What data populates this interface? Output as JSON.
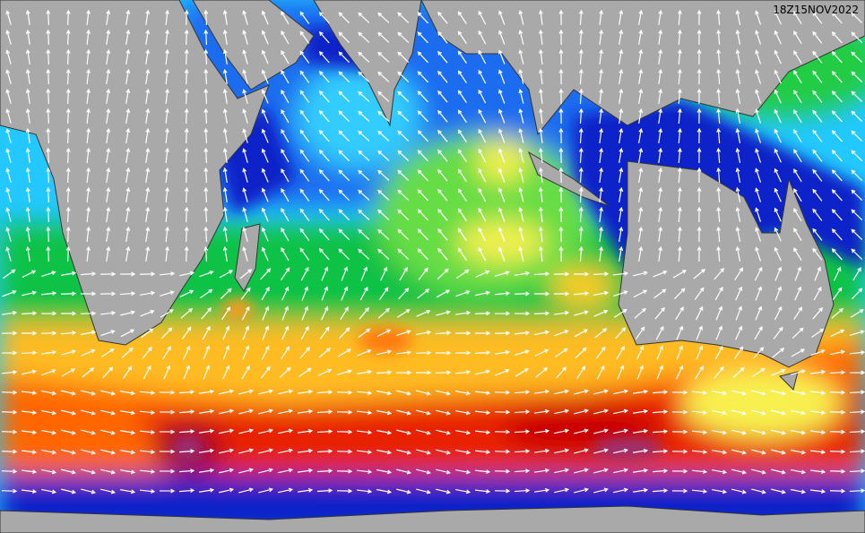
{
  "timestamp": "18Z15NOV2022"
}
